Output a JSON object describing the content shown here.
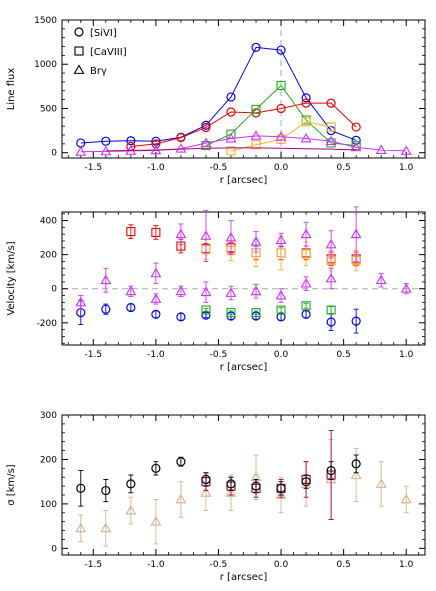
{
  "chart_data": [
    {
      "type": "line",
      "ylabel": "Line flux",
      "xlabel": "r [arcsec]",
      "xlim": [
        -1.75,
        1.15
      ],
      "ylim": [
        -60,
        1500
      ],
      "xticks": [
        -1.5,
        -1.0,
        -0.5,
        0.0,
        0.5,
        1.0
      ],
      "xtick_labels": [
        "-1.5",
        "-1.0",
        "-0.5",
        "0.0",
        "0.5",
        "1.0"
      ],
      "yticks": [
        0,
        500,
        1000,
        1500
      ],
      "ytick_labels": [
        "0",
        "500",
        "1000",
        "1500"
      ],
      "legend": {
        "position": "top-left",
        "entries": [
          {
            "marker": "circle",
            "label": "[SiVI]"
          },
          {
            "marker": "square",
            "label": "[CaVIII]"
          },
          {
            "marker": "triangle",
            "label": "Brγ"
          }
        ]
      },
      "zero_line_x": 0.0,
      "series": [
        {
          "marker": "circle",
          "color": "#0000ee",
          "line": true,
          "x": [
            -1.6,
            -1.4,
            -1.2,
            -1.0,
            -0.8,
            -0.6,
            -0.4,
            -0.2,
            0.0,
            0.2,
            0.4,
            0.6
          ],
          "y": [
            110,
            130,
            135,
            130,
            175,
            310,
            630,
            1190,
            1160,
            620,
            250,
            140
          ]
        },
        {
          "marker": "circle",
          "color": "#ee0000",
          "line": true,
          "x": [
            -1.2,
            -1.0,
            -0.8,
            -0.6,
            -0.4,
            -0.2,
            0.0,
            0.2,
            0.4,
            0.6
          ],
          "y": [
            70,
            100,
            170,
            285,
            460,
            450,
            500,
            560,
            560,
            290
          ]
        },
        {
          "marker": "square",
          "color": "#22aa22",
          "line": true,
          "x": [
            -0.6,
            -0.4,
            -0.2,
            0.0,
            0.2,
            0.4,
            0.6
          ],
          "y": [
            80,
            210,
            490,
            760,
            370,
            110,
            80
          ]
        },
        {
          "marker": "square",
          "color": "#f0b030",
          "line": true,
          "x": [
            -0.4,
            -0.2,
            0.0,
            0.2,
            0.4
          ],
          "y": [
            20,
            90,
            150,
            350,
            290
          ]
        },
        {
          "marker": "triangle",
          "color": "#cc33ff",
          "line": true,
          "x": [
            -1.6,
            -1.4,
            -1.2,
            -1.0,
            -0.8,
            -0.6,
            -0.4,
            -0.2,
            0.0,
            0.2,
            0.4,
            0.6,
            0.8,
            1.0
          ],
          "y": [
            10,
            15,
            20,
            25,
            45,
            110,
            160,
            190,
            180,
            160,
            130,
            60,
            30,
            20
          ]
        },
        {
          "marker": "none",
          "color": "#aa0077",
          "line": true,
          "x": [
            -1.4,
            -1.2,
            -1.0,
            -0.8,
            -0.6,
            -0.4,
            -0.2,
            0.0,
            0.2,
            0.4,
            0.6
          ],
          "y": [
            20,
            25,
            30,
            40,
            50,
            55,
            55,
            50,
            45,
            40,
            30
          ]
        }
      ]
    },
    {
      "type": "scatter",
      "ylabel": "Velocity [km/s]",
      "xlabel": "r [arcsec]",
      "xlim": [
        -1.75,
        1.15
      ],
      "ylim": [
        -330,
        450
      ],
      "xticks": [
        -1.5,
        -1.0,
        -0.5,
        0.0,
        0.5,
        1.0
      ],
      "xtick_labels": [
        "-1.5",
        "-1.0",
        "-0.5",
        "0.0",
        "0.5",
        "1.0"
      ],
      "yticks": [
        -200,
        0,
        200,
        400
      ],
      "ytick_labels": [
        "-200",
        "0",
        "200",
        "400"
      ],
      "zero_line_y": 0,
      "series": [
        {
          "marker": "circle",
          "color": "#0000ee",
          "x": [
            -1.6,
            -1.4,
            -1.2,
            -1.0,
            -0.8,
            -0.6,
            -0.4,
            -0.2,
            0.0,
            0.2,
            0.4,
            0.6
          ],
          "y": [
            -140,
            -120,
            -110,
            -150,
            -165,
            -155,
            -160,
            -160,
            -165,
            -150,
            -195,
            -190
          ],
          "err": [
            70,
            30,
            20,
            20,
            20,
            15,
            20,
            20,
            20,
            20,
            50,
            70
          ]
        },
        {
          "marker": "square",
          "color": "#ee0000",
          "x": [
            -1.2,
            -1.0,
            -0.8,
            -0.6,
            -0.4,
            -0.2,
            0.0,
            0.2,
            0.4,
            0.6
          ],
          "y": [
            335,
            330,
            250,
            235,
            240,
            210,
            210,
            210,
            175,
            175
          ],
          "err": [
            40,
            40,
            40,
            30,
            30,
            40,
            40,
            40,
            40,
            40
          ]
        },
        {
          "marker": "square",
          "color": "#f0b030",
          "x": [
            -0.6,
            -0.4,
            -0.2,
            0.0,
            0.2,
            0.4,
            0.6
          ],
          "y": [
            230,
            225,
            210,
            210,
            205,
            165,
            165
          ],
          "err": [
            60,
            60,
            80,
            100,
            70,
            60,
            60
          ]
        },
        {
          "marker": "square",
          "color": "#22aa22",
          "x": [
            -0.6,
            -0.4,
            -0.2,
            0.0,
            0.2,
            0.4
          ],
          "y": [
            -125,
            -140,
            -140,
            -125,
            -100,
            -125
          ],
          "err": [
            10,
            10,
            10,
            15,
            15,
            20
          ]
        },
        {
          "marker": "triangle",
          "color": "#cc33ff",
          "x": [
            -1.6,
            -1.4,
            -1.2,
            -1.0,
            -0.8,
            -0.6,
            -0.4,
            -0.2,
            0.0,
            0.2,
            0.4,
            0.6,
            0.8,
            1.0
          ],
          "y": [
            -80,
            50,
            -15,
            90,
            320,
            310,
            300,
            275,
            285,
            320,
            260,
            320,
            50,
            0
          ],
          "err": [
            40,
            70,
            30,
            60,
            60,
            150,
            100,
            60,
            40,
            70,
            80,
            160,
            40,
            30
          ]
        },
        {
          "marker": "triangle",
          "color": "#cc33ff",
          "x": [
            -1.0,
            -0.8,
            -0.6,
            -0.4,
            -0.2,
            0.0,
            0.2,
            0.4
          ],
          "y": [
            -60,
            -15,
            -20,
            -25,
            -15,
            -40,
            30,
            60
          ],
          "err": [
            30,
            30,
            60,
            40,
            40,
            40,
            40,
            60
          ]
        }
      ]
    },
    {
      "type": "scatter",
      "ylabel": "σ [km/s]",
      "xlabel": "r [arcsec]",
      "xlim": [
        -1.75,
        1.15
      ],
      "ylim": [
        -15,
        300
      ],
      "xticks": [
        -1.5,
        -1.0,
        -0.5,
        0.0,
        0.5,
        1.0
      ],
      "xtick_labels": [
        "-1.5",
        "-1.0",
        "-0.5",
        "0.0",
        "0.5",
        "1.0"
      ],
      "yticks": [
        0,
        100,
        200,
        300
      ],
      "ytick_labels": [
        "0",
        "100",
        "200",
        "300"
      ],
      "series": [
        {
          "marker": "triangle",
          "color": "#d2b48c",
          "x": [
            -1.6,
            -1.4,
            -1.2,
            -1.0,
            -0.8,
            -0.6,
            -0.4,
            -0.2,
            0.0,
            0.2,
            0.4,
            0.6,
            0.8,
            1.0
          ],
          "y": [
            45,
            45,
            85,
            60,
            110,
            125,
            125,
            160,
            120,
            145,
            155,
            165,
            145,
            110
          ],
          "err": [
            30,
            40,
            30,
            50,
            40,
            40,
            40,
            50,
            40,
            50,
            90,
            60,
            50,
            30
          ]
        },
        {
          "marker": "square",
          "color": "#aa0033",
          "x": [
            -0.6,
            -0.4,
            -0.2,
            0.0,
            0.2,
            0.4
          ],
          "y": [
            150,
            140,
            135,
            135,
            155,
            165
          ],
          "err": [
            20,
            20,
            20,
            20,
            40,
            100
          ]
        },
        {
          "marker": "circle",
          "color": "#000000",
          "x": [
            -1.6,
            -1.4,
            -1.2,
            -1.0,
            -0.8,
            -0.6,
            -0.4,
            -0.2,
            0.0,
            0.2,
            0.4,
            0.6
          ],
          "y": [
            135,
            130,
            145,
            180,
            195,
            155,
            145,
            140,
            135,
            150,
            175,
            190
          ],
          "err": [
            40,
            25,
            20,
            15,
            10,
            15,
            15,
            15,
            15,
            15,
            20,
            20
          ]
        }
      ]
    }
  ]
}
